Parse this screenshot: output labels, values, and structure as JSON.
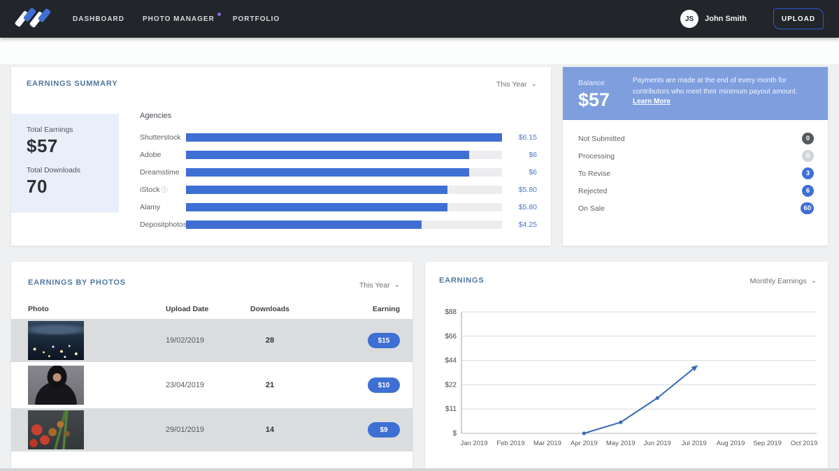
{
  "nav": {
    "items": [
      {
        "label": "DASHBOARD"
      },
      {
        "label": "PHOTO MANAGER"
      },
      {
        "label": "PORTFOLIO"
      }
    ],
    "user_initials": "JS",
    "user_name": "John Smith",
    "upload_label": "UPLOAD"
  },
  "earnings_summary": {
    "title": "EARNINGS SUMMARY",
    "period_filter": "This Year",
    "totals": {
      "earnings_label": "Total Earnings",
      "earnings_value": "$57",
      "downloads_label": "Total Downloads",
      "downloads_value": "70"
    }
  },
  "balance": {
    "label": "Balance",
    "value": "$57",
    "note": "Payments are made at the end of every month for contributors who meet their minimum payout amount.",
    "link": "Learn More"
  },
  "statuses": [
    {
      "label": "Not Submitted",
      "count": "0",
      "badge_bg": "#55595e"
    },
    {
      "label": "Processing",
      "count": "0",
      "badge_bg": "#d2d5d8"
    },
    {
      "label": "To Revise",
      "count": "3",
      "badge_bg": "#3e6fd3"
    },
    {
      "label": "Rejected",
      "count": "6",
      "badge_bg": "#3e6fd3"
    },
    {
      "label": "On Sale",
      "count": "60",
      "badge_bg": "#3e6fd3"
    }
  ],
  "photos_table": {
    "title": "EARNINGS BY PHOTOS",
    "period_filter": "This Year",
    "columns": [
      "Photo",
      "Upload Date",
      "Downloads",
      "Earning"
    ],
    "rows": [
      {
        "photo": "night-cityscape-aerial",
        "upload_date": "19/02/2019",
        "downloads": "28",
        "earning": "$15"
      },
      {
        "photo": "woman-in-black-hijab",
        "upload_date": "23/04/2019",
        "downloads": "21",
        "earning": "$10"
      },
      {
        "photo": "tomatoes-and-herbs",
        "upload_date": "29/01/2019",
        "downloads": "14",
        "earning": "$9"
      }
    ]
  },
  "earnings_chart": {
    "title": "EARNINGS",
    "period_filter": "Monthly Earnings"
  },
  "chart_data": [
    {
      "type": "bar",
      "title": "Agencies",
      "orientation": "horizontal",
      "categories": [
        "Shutterstock",
        "Adobe",
        "Dreamstime",
        "iStock",
        "Alamy",
        "Depositphotos"
      ],
      "values": [
        6.15,
        6,
        6,
        5.8,
        5.8,
        4.25
      ],
      "value_labels": [
        "$6.15",
        "$6",
        "$6",
        "$5.80",
        "$5.80",
        "$4.25"
      ],
      "bar_pct": [
        "100%",
        "89.5%",
        "89.5%",
        "82.8%",
        "82.8%",
        "74.5%"
      ],
      "bar_color": "#3e6fd3",
      "track_color": "#ededef",
      "info_icon_on": "iStock"
    },
    {
      "type": "line",
      "title": "Monthly Earnings",
      "x": [
        "Jan 2019",
        "Feb 2019",
        "Mar 2019",
        "Apr 2019",
        "May 2019",
        "Jun 2019",
        "Jul 2019",
        "Aug 2019",
        "Sep 2019",
        "Oct 2019"
      ],
      "values": [
        null,
        null,
        null,
        0,
        5,
        16,
        37,
        null,
        null,
        null
      ],
      "y_ticks": [
        0,
        11,
        22,
        44,
        66,
        88
      ],
      "y_tick_labels": [
        "$",
        "$11",
        "$22",
        "$44",
        "$66",
        "$88"
      ],
      "line_color": "#3a6cb5",
      "grid": true,
      "legend": "none"
    }
  ]
}
